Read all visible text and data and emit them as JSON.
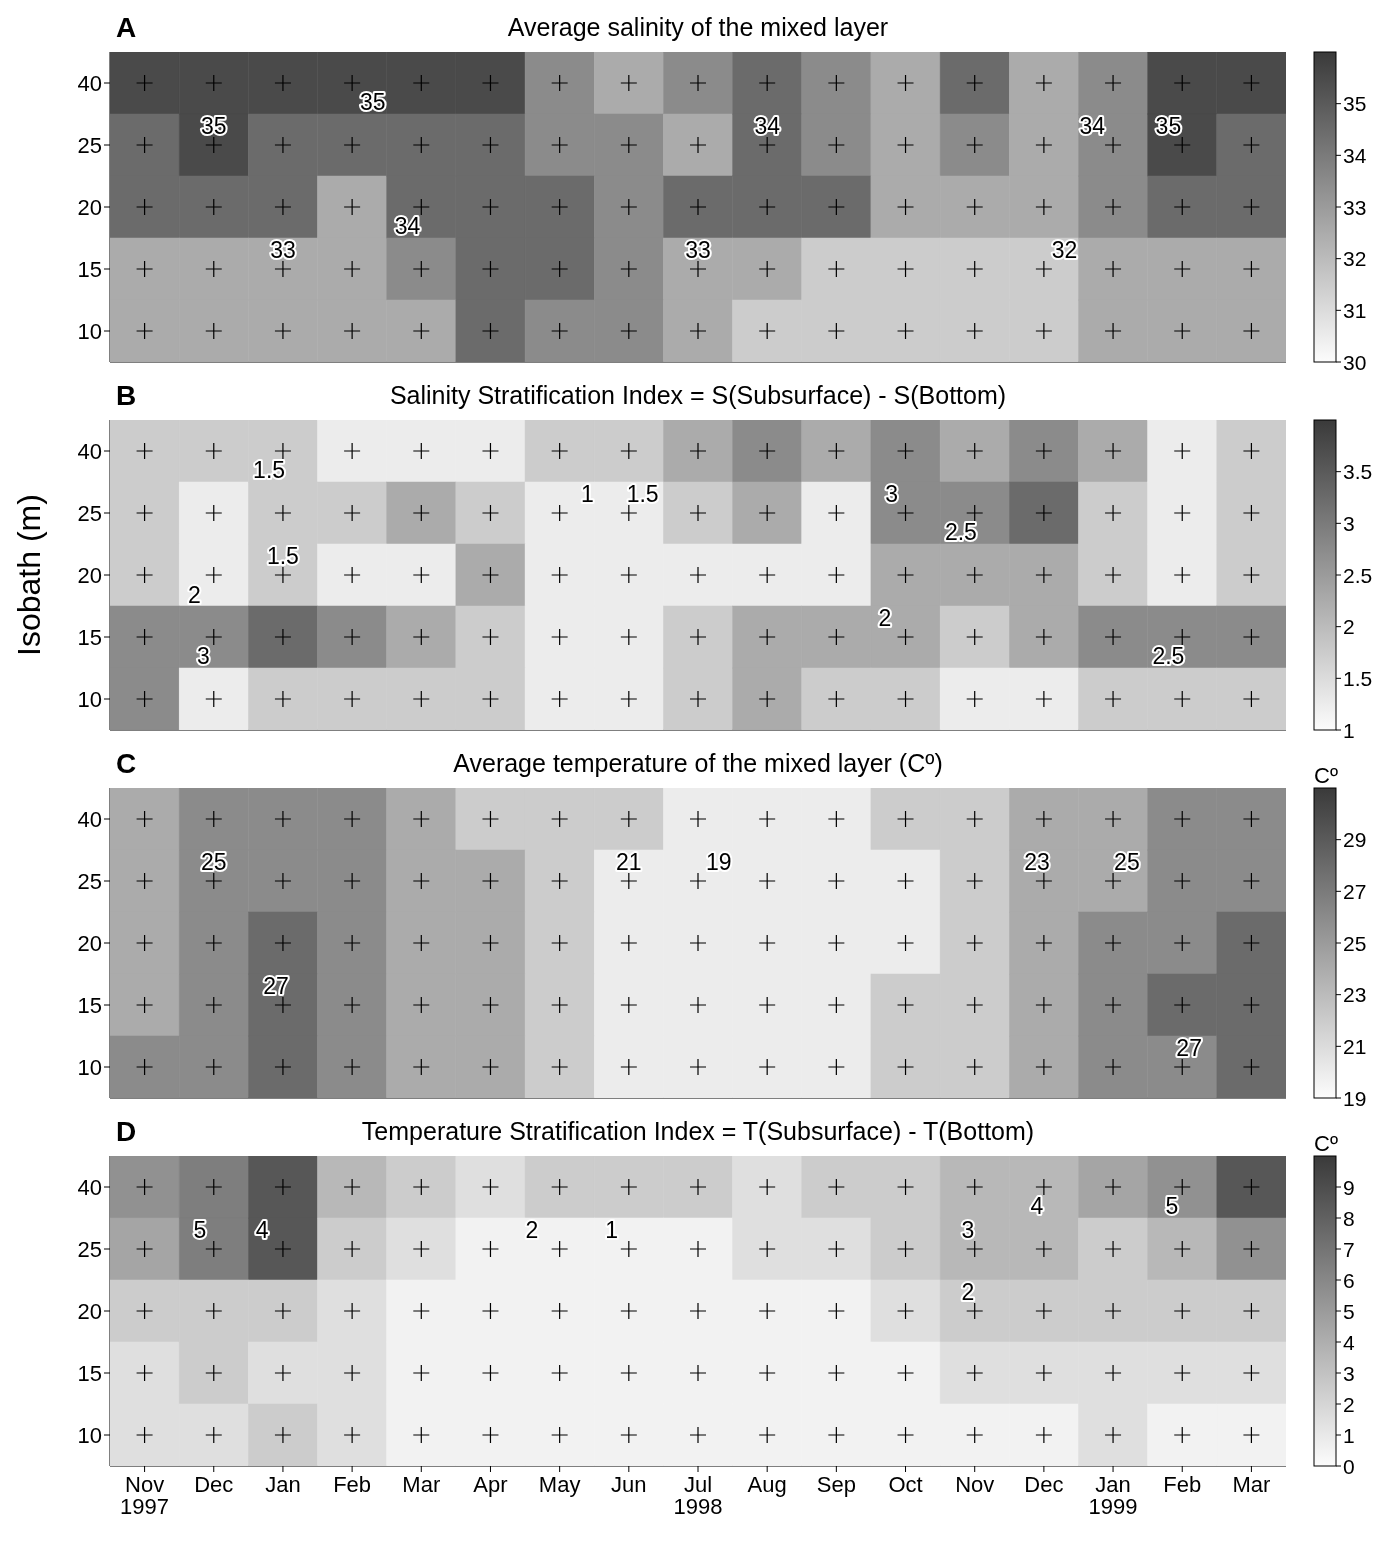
{
  "chart_data": [
    {
      "type": "heatmap",
      "title": "Average salinity of the mixed layer",
      "annotations": [
        "A",
        "35",
        "35",
        "33",
        "34",
        "34",
        "33",
        "32",
        "34",
        "35"
      ],
      "categories": [
        null,
        null,
        null,
        null,
        null,
        null,
        null,
        null,
        null,
        null,
        null,
        null,
        null,
        null,
        null,
        null,
        null
      ],
      "y_categories": [
        "40",
        "25",
        "20",
        "15",
        "10"
      ],
      "cells": [
        [
          35.5,
          35.5,
          35.5,
          35.5,
          35.5,
          35.5,
          33.5,
          32.5,
          33.5,
          34.5,
          33.5,
          32.5,
          34.5,
          32.5,
          33.5,
          35.5,
          35.5
        ],
        [
          34.5,
          35.5,
          34.5,
          34.5,
          34.5,
          34.5,
          33.5,
          33.5,
          32.5,
          34.5,
          33.5,
          32.5,
          33.5,
          32.5,
          33.5,
          35.5,
          34.5
        ],
        [
          34.5,
          34.5,
          34.5,
          32.5,
          34.5,
          34.5,
          34.5,
          33.5,
          34.5,
          34.5,
          34.5,
          32.5,
          32.5,
          32.5,
          33.5,
          34.5,
          34.5
        ],
        [
          32.5,
          32.5,
          32.5,
          32.5,
          33.5,
          34.5,
          34.5,
          33.5,
          32.5,
          32.5,
          31.5,
          31.5,
          31.5,
          31.5,
          32.5,
          32.5,
          32.5
        ],
        [
          32.5,
          32.5,
          32.5,
          32.5,
          32.5,
          34.5,
          33.5,
          33.5,
          32.5,
          31.5,
          31.5,
          31.5,
          31.5,
          31.5,
          32.5,
          32.5,
          32.5
        ]
      ],
      "clim": [
        30,
        36
      ],
      "cticks": [
        30,
        31,
        32,
        33,
        34,
        35
      ]
    },
    {
      "type": "heatmap",
      "title": "Salinity Stratification Index = S(Subsurface) - S(Bottom)",
      "ylabel": "Isobath (m)",
      "annotations": [
        "B",
        "1.5",
        "1.5",
        "2",
        "3",
        "1",
        "1.5",
        "3",
        "2.5",
        "2",
        "2.5"
      ],
      "categories": [
        null,
        null,
        null,
        null,
        null,
        null,
        null,
        null,
        null,
        null,
        null,
        null,
        null,
        null,
        null,
        null,
        null
      ],
      "y_categories": [
        "40",
        "25",
        "20",
        "15",
        "10"
      ],
      "cells": [
        [
          1.75,
          1.75,
          1.75,
          1.25,
          1.25,
          1.25,
          1.75,
          1.75,
          2.25,
          2.75,
          2.25,
          2.75,
          2.25,
          2.75,
          2.25,
          1.25,
          1.75
        ],
        [
          1.75,
          1.25,
          1.75,
          1.75,
          2.25,
          1.75,
          1.25,
          1.25,
          1.75,
          2.25,
          1.25,
          2.75,
          2.75,
          3.25,
          1.75,
          1.25,
          1.75
        ],
        [
          1.75,
          1.25,
          1.75,
          1.25,
          1.25,
          2.25,
          1.25,
          1.25,
          1.25,
          1.25,
          1.25,
          2.25,
          2.25,
          2.25,
          1.75,
          1.25,
          1.75
        ],
        [
          2.75,
          2.75,
          3.25,
          2.75,
          2.25,
          1.75,
          1.25,
          1.25,
          1.75,
          2.25,
          2.25,
          2.25,
          1.75,
          2.25,
          2.75,
          2.75,
          2.75
        ],
        [
          2.75,
          1.25,
          1.75,
          1.75,
          1.75,
          1.75,
          1.25,
          1.25,
          1.75,
          2.25,
          1.75,
          1.75,
          1.25,
          1.25,
          1.75,
          1.75,
          1.75
        ]
      ],
      "clim": [
        1,
        4
      ],
      "cticks": [
        1,
        1.5,
        2,
        2.5,
        3,
        3.5
      ]
    },
    {
      "type": "heatmap",
      "title": "Average temperature of the mixed layer (Cº)",
      "clabel": "Cº",
      "annotations": [
        "C",
        "25",
        "27",
        "21",
        "19",
        "23",
        "25",
        "27"
      ],
      "categories": [
        null,
        null,
        null,
        null,
        null,
        null,
        null,
        null,
        null,
        null,
        null,
        null,
        null,
        null,
        null,
        null,
        null
      ],
      "y_categories": [
        "40",
        "25",
        "20",
        "15",
        "10"
      ],
      "cells": [
        [
          24,
          26,
          26,
          26,
          24,
          22,
          22,
          22,
          20,
          20,
          20,
          22,
          22,
          24,
          24,
          26,
          26
        ],
        [
          24,
          26,
          26,
          26,
          24,
          24,
          22,
          20,
          20,
          20,
          20,
          20,
          22,
          24,
          24,
          26,
          26
        ],
        [
          24,
          26,
          28,
          26,
          24,
          24,
          22,
          20,
          20,
          20,
          20,
          20,
          22,
          24,
          26,
          26,
          28
        ],
        [
          24,
          26,
          28,
          26,
          24,
          24,
          22,
          20,
          20,
          20,
          20,
          22,
          22,
          24,
          26,
          28,
          28
        ],
        [
          26,
          26,
          28,
          26,
          24,
          24,
          22,
          20,
          20,
          20,
          20,
          22,
          22,
          24,
          26,
          26,
          28
        ]
      ],
      "clim": [
        19,
        31
      ],
      "cticks": [
        19,
        21,
        23,
        25,
        27,
        29
      ]
    },
    {
      "type": "heatmap",
      "title": "Temperature Stratification Index = T(Subsurface) - T(Bottom)",
      "clabel": "Cº",
      "annotations": [
        "D",
        "5",
        "4",
        "2",
        "1",
        "3",
        "2",
        "4",
        "5"
      ],
      "categories": [
        "Nov\n1997",
        "Dec",
        "Jan",
        "Feb",
        "Mar",
        "Apr",
        "May",
        "Jun",
        "Jul\n1998",
        "Aug",
        "Sep",
        "Oct",
        "Nov",
        "Dec",
        "Jan\n1999",
        "Feb",
        "Mar"
      ],
      "y_categories": [
        "40",
        "25",
        "20",
        "15",
        "10"
      ],
      "cells": [
        [
          5.5,
          6.5,
          8.5,
          3.5,
          2.5,
          1.5,
          2.5,
          2.5,
          2.5,
          1.5,
          2.5,
          2.5,
          3.5,
          3.5,
          4.5,
          5.5,
          8.5
        ],
        [
          4.5,
          6.5,
          8.5,
          2.5,
          1.5,
          0.5,
          0.5,
          0.5,
          0.5,
          1.5,
          1.5,
          2.5,
          3.5,
          3.5,
          2.5,
          3.5,
          5.5
        ],
        [
          2.5,
          2.5,
          2.5,
          1.5,
          0.5,
          0.5,
          0.5,
          0.5,
          0.5,
          0.5,
          0.5,
          1.5,
          2.5,
          2.5,
          2.5,
          2.5,
          2.5
        ],
        [
          1.5,
          2.5,
          1.5,
          1.5,
          0.5,
          0.5,
          0.5,
          0.5,
          0.5,
          0.5,
          0.5,
          0.5,
          1.5,
          1.5,
          1.5,
          1.5,
          1.5
        ],
        [
          1.5,
          1.5,
          2.5,
          1.5,
          0.5,
          0.5,
          0.5,
          0.5,
          0.5,
          0.5,
          0.5,
          0.5,
          0.5,
          0.5,
          1.5,
          0.5,
          0.5
        ]
      ],
      "clim": [
        0,
        10
      ],
      "cticks": [
        0,
        1,
        2,
        3,
        4,
        5,
        6,
        7,
        8,
        9
      ]
    }
  ]
}
